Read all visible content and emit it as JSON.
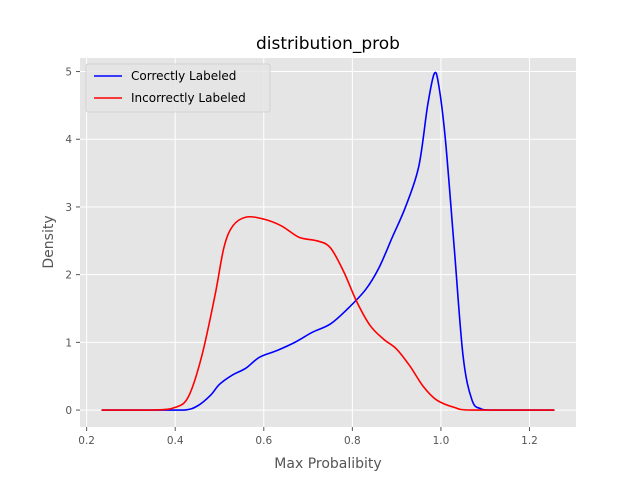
{
  "chart_data": {
    "type": "line",
    "title": "distribution_prob",
    "xlabel": "Max Probalibity",
    "ylabel": "Density",
    "xlim": [
      0.185,
      1.305
    ],
    "ylim": [
      -0.25,
      5.2
    ],
    "x_ticks": [
      0.2,
      0.4,
      0.6,
      0.8,
      1.0,
      1.2
    ],
    "x_tick_labels": [
      "0.2",
      "0.4",
      "0.6",
      "0.8",
      "1.0",
      "1.2"
    ],
    "y_ticks": [
      0,
      1,
      2,
      3,
      4,
      5
    ],
    "y_tick_labels": [
      "0",
      "1",
      "2",
      "3",
      "4",
      "5"
    ],
    "grid": true,
    "legend_position": "top-left",
    "colors": {
      "background": "#e5e5e5",
      "grid": "#ffffff"
    },
    "series": [
      {
        "name": "Correctly Labeled",
        "color": "#0000ff",
        "points": [
          [
            0.235,
            0.0
          ],
          [
            0.36,
            0.0
          ],
          [
            0.42,
            0.0
          ],
          [
            0.45,
            0.06
          ],
          [
            0.48,
            0.22
          ],
          [
            0.5,
            0.38
          ],
          [
            0.53,
            0.52
          ],
          [
            0.56,
            0.62
          ],
          [
            0.59,
            0.78
          ],
          [
            0.63,
            0.88
          ],
          [
            0.67,
            1.0
          ],
          [
            0.71,
            1.15
          ],
          [
            0.75,
            1.27
          ],
          [
            0.79,
            1.5
          ],
          [
            0.83,
            1.78
          ],
          [
            0.86,
            2.1
          ],
          [
            0.89,
            2.55
          ],
          [
            0.92,
            3.0
          ],
          [
            0.95,
            3.6
          ],
          [
            0.97,
            4.5
          ],
          [
            0.985,
            4.97
          ],
          [
            0.995,
            4.8
          ],
          [
            1.01,
            4.0
          ],
          [
            1.03,
            2.4
          ],
          [
            1.05,
            0.8
          ],
          [
            1.07,
            0.15
          ],
          [
            1.09,
            0.02
          ],
          [
            1.12,
            0.0
          ],
          [
            1.255,
            0.0
          ]
        ]
      },
      {
        "name": "Incorrectly Labeled",
        "color": "#ff0000",
        "points": [
          [
            0.235,
            0.0
          ],
          [
            0.35,
            0.0
          ],
          [
            0.4,
            0.04
          ],
          [
            0.43,
            0.2
          ],
          [
            0.46,
            0.8
          ],
          [
            0.49,
            1.7
          ],
          [
            0.51,
            2.4
          ],
          [
            0.53,
            2.72
          ],
          [
            0.56,
            2.85
          ],
          [
            0.6,
            2.82
          ],
          [
            0.64,
            2.72
          ],
          [
            0.68,
            2.55
          ],
          [
            0.72,
            2.5
          ],
          [
            0.75,
            2.4
          ],
          [
            0.78,
            2.05
          ],
          [
            0.81,
            1.6
          ],
          [
            0.84,
            1.25
          ],
          [
            0.87,
            1.05
          ],
          [
            0.9,
            0.9
          ],
          [
            0.93,
            0.65
          ],
          [
            0.96,
            0.35
          ],
          [
            0.99,
            0.15
          ],
          [
            1.03,
            0.04
          ],
          [
            1.07,
            0.0
          ],
          [
            1.255,
            0.0
          ]
        ]
      }
    ]
  }
}
